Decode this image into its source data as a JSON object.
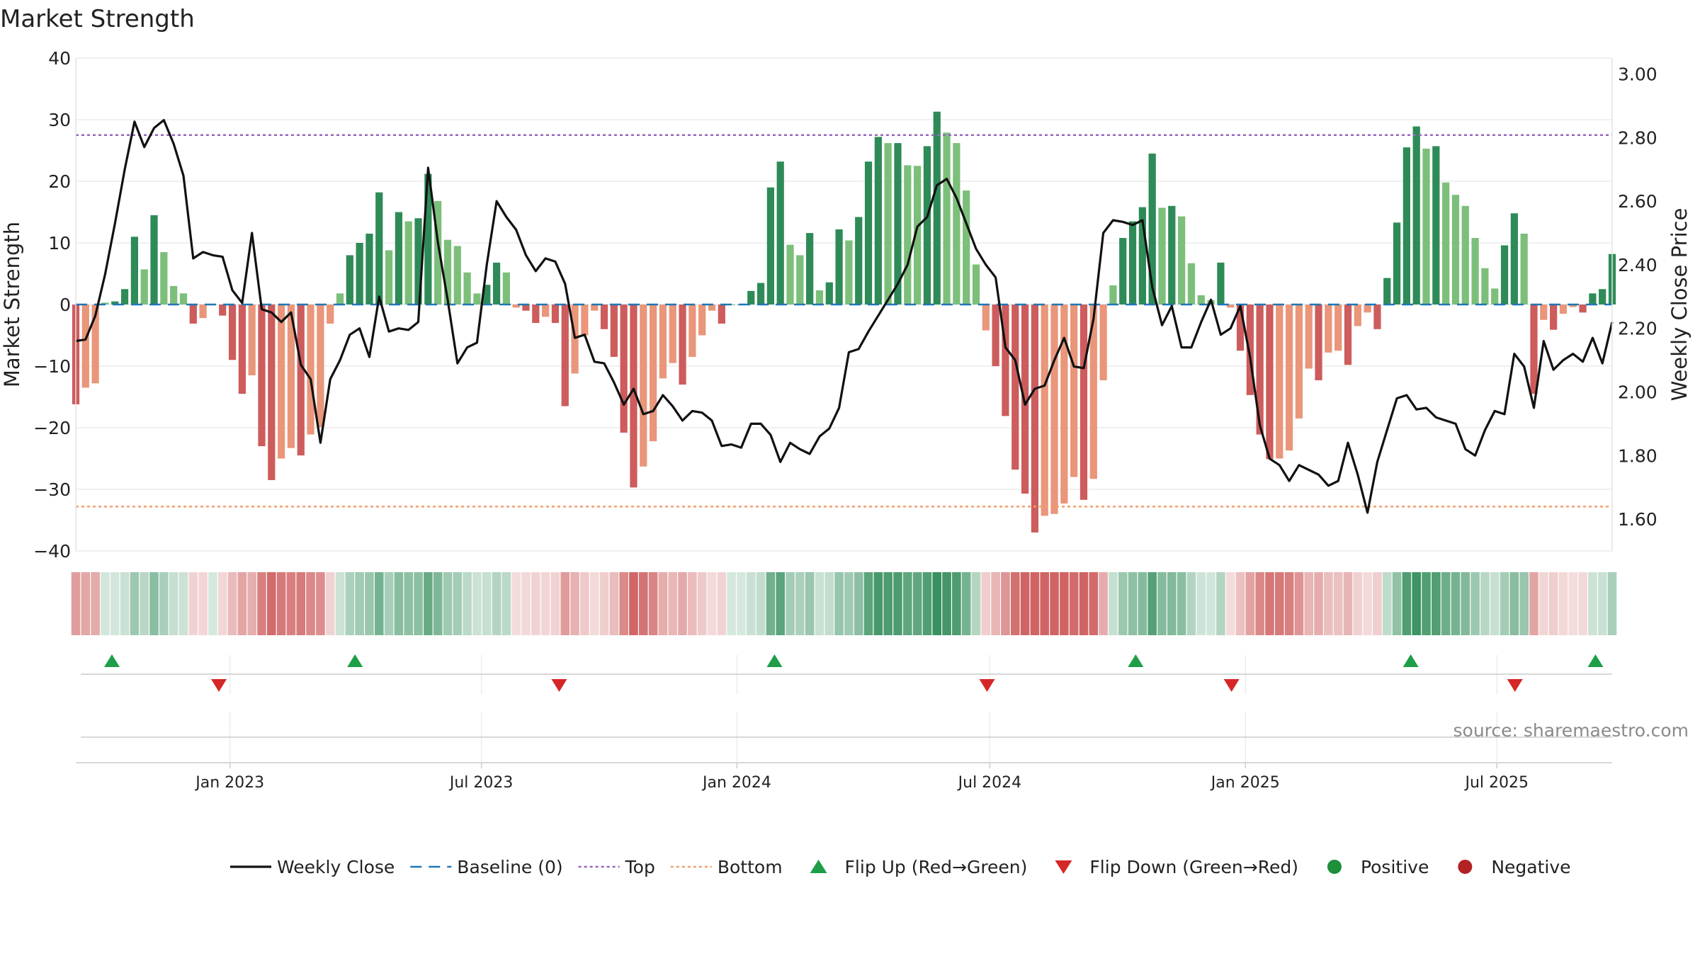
{
  "chart_data": {
    "type": "bar",
    "title": "Market Strength",
    "ylabel": "Market Strength",
    "y2label": "Weekly Close Price",
    "ylim": [
      -40,
      40
    ],
    "y2lim": [
      1.5,
      3.05
    ],
    "yticks": [
      "40",
      "30",
      "20",
      "10",
      "0",
      "−10",
      "−20",
      "−30",
      "−40"
    ],
    "y2ticks": [
      "3.00",
      "2.80",
      "2.60",
      "2.40",
      "2.20",
      "2.00",
      "1.80",
      "1.60"
    ],
    "x_start": "2022-09-12",
    "x_end": "2025-09-22",
    "date_ticks": [
      {
        "label": "Jan 2023",
        "date": "2023-01-01"
      },
      {
        "label": "Jul 2023",
        "date": "2023-07-01"
      },
      {
        "label": "Jan 2024",
        "date": "2024-01-01"
      },
      {
        "label": "Jul 2024",
        "date": "2024-07-01"
      },
      {
        "label": "Jan 2025",
        "date": "2025-01-01"
      },
      {
        "label": "Jul 2025",
        "date": "2025-07-01"
      }
    ],
    "reference_lines": {
      "top": 27.5,
      "bottom": -32.8,
      "baseline": 0
    },
    "series": [
      {
        "name": "Market Strength",
        "kind": "bar",
        "values": [
          -16.2,
          -13.5,
          -12.8,
          0.3,
          0.5,
          2.5,
          11,
          5.7,
          14.5,
          8.5,
          3,
          1.8,
          -3.1,
          -2.2,
          0,
          -1.8,
          -9,
          -14.5,
          -11.5,
          -23,
          -28.5,
          -25,
          -23.3,
          -24.5,
          -21.1,
          -19.9,
          -3.1,
          1.8,
          8,
          10,
          11.5,
          18.2,
          8.8,
          15,
          13.5,
          14,
          21.2,
          16.8,
          10.5,
          9.5,
          5.2,
          1.8,
          3.2,
          6.8,
          5.2,
          -0.5,
          -1,
          -3,
          -2,
          -3,
          -16.5,
          -11.2,
          -5,
          -1,
          -4,
          -8.5,
          -20.8,
          -29.7,
          -26.3,
          -22.2,
          -12,
          -9.5,
          -13,
          -8.5,
          -5,
          -1,
          -3.1,
          0,
          0,
          2.2,
          3.5,
          19,
          23.2,
          9.7,
          8,
          11.6,
          2.3,
          3.6,
          12.2,
          10.4,
          14.2,
          23.2,
          27.2,
          26.2,
          26.2,
          22.6,
          22.5,
          25.7,
          31.3,
          27.9,
          26.2,
          18.5,
          6.5,
          -4.2,
          -10,
          -18.1,
          -26.8,
          -30.7,
          -37,
          -34.3,
          -34,
          -32.3,
          -28,
          -31.7,
          -28.3,
          -12.3,
          3.1,
          10.8,
          13.5,
          15.8,
          24.5,
          15.7,
          16,
          14.3,
          6.7,
          1.5,
          0.7,
          6.8,
          -0.5,
          -7.5,
          -14.7,
          -21.1,
          -25.1,
          -25,
          -23.7,
          -18.5,
          -10.4,
          -12.3,
          -7.8,
          -7.5,
          -9.8,
          -3.5,
          -1.3,
          -4,
          4.3,
          13.3,
          25.5,
          28.9,
          25.3,
          25.7,
          19.8,
          17.8,
          16,
          10.8,
          5.9,
          2.6,
          9.6,
          14.8,
          11.5,
          -14.5,
          -2.5,
          -4.1,
          -1.5,
          -0.4,
          -1.3,
          1.8,
          2.5,
          8.2
        ]
      },
      {
        "name": "Weekly Close",
        "kind": "line",
        "values": [
          2.16,
          2.165,
          2.24,
          2.37,
          2.53,
          2.7,
          2.85,
          2.77,
          2.83,
          2.855,
          2.78,
          2.68,
          2.42,
          2.44,
          2.43,
          2.425,
          2.32,
          2.28,
          2.5,
          2.26,
          2.25,
          2.22,
          2.25,
          2.085,
          2.04,
          1.84,
          2.04,
          2.1,
          2.18,
          2.2,
          2.11,
          2.3,
          2.19,
          2.2,
          2.195,
          2.22,
          2.705,
          2.47,
          2.29,
          2.09,
          2.14,
          2.155,
          2.4,
          2.6,
          2.55,
          2.51,
          2.43,
          2.38,
          2.42,
          2.41,
          2.34,
          2.17,
          2.18,
          2.095,
          2.09,
          2.03,
          1.96,
          2.01,
          1.93,
          1.94,
          1.99,
          1.955,
          1.91,
          1.94,
          1.935,
          1.91,
          1.83,
          1.835,
          1.825,
          1.9,
          1.9,
          1.865,
          1.78,
          1.84,
          1.82,
          1.805,
          1.86,
          1.885,
          1.95,
          2.125,
          2.135,
          2.19,
          2.24,
          2.29,
          2.34,
          2.4,
          2.52,
          2.55,
          2.65,
          2.67,
          2.61,
          2.53,
          2.45,
          2.4,
          2.36,
          2.14,
          2.1,
          1.96,
          2.01,
          2.02,
          2.1,
          2.17,
          2.08,
          2.075,
          2.23,
          2.5,
          2.54,
          2.535,
          2.525,
          2.54,
          2.33,
          2.21,
          2.27,
          2.14,
          2.14,
          2.22,
          2.29,
          2.18,
          2.2,
          2.27,
          2.11,
          1.895,
          1.79,
          1.77,
          1.72,
          1.77,
          1.755,
          1.74,
          1.705,
          1.72,
          1.84,
          1.74,
          1.62,
          1.78,
          1.88,
          1.98,
          1.99,
          1.945,
          1.95,
          1.92,
          1.91,
          1.9,
          1.82,
          1.8,
          1.88,
          1.94,
          1.93,
          2.12,
          2.08,
          1.95,
          2.16,
          2.07,
          2.1,
          2.12,
          2.095,
          2.17,
          2.09,
          2.22
        ]
      }
    ],
    "flips_up_dates": [
      "2022-10-08",
      "2023-04-01",
      "2024-01-28",
      "2024-10-14",
      "2025-04-30",
      "2025-09-10"
    ],
    "flips_down_dates": [
      "2022-12-24",
      "2023-08-26",
      "2024-06-29",
      "2024-12-22",
      "2025-07-14"
    ],
    "legend": [
      {
        "label": "Weekly Close",
        "marker": "solid-line",
        "color": "#111111"
      },
      {
        "label": "Baseline (0)",
        "marker": "dashed-line",
        "color": "#1f77b4"
      },
      {
        "label": "Top",
        "marker": "dotted-line",
        "color": "#9467bd"
      },
      {
        "label": "Bottom",
        "marker": "dotted-line",
        "color": "#f0a06a"
      },
      {
        "label": "Flip Up (Red→Green)",
        "marker": "triangle-up",
        "color": "#1e9e48"
      },
      {
        "label": "Flip Down (Green→Red)",
        "marker": "triangle-down",
        "color": "#d62728"
      },
      {
        "label": "Positive",
        "marker": "circle",
        "color": "#1e8f3a"
      },
      {
        "label": "Negative",
        "marker": "circle",
        "color": "#b22222"
      }
    ],
    "legend_position": "bottom",
    "grid": true,
    "colors": {
      "pos_strong": "#2e8b57",
      "pos_light": "#7cbf7a",
      "neg_strong": "#cd5c5c",
      "neg_light": "#e9967a",
      "line": "#111111",
      "top": "#9467bd",
      "bottom": "#f0a06a",
      "baseline": "#1f77b4"
    }
  },
  "source": "source: sharemaestro.com"
}
